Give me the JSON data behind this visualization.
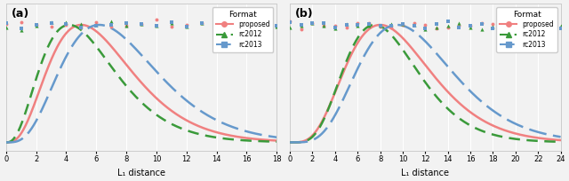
{
  "panel_a": {
    "label": "(a)",
    "xlabel": "L₁ distance",
    "xlim": [
      0,
      18
    ],
    "xticks": [
      0,
      2,
      4,
      6,
      8,
      10,
      12,
      14,
      16,
      18
    ],
    "proposed_peak": 5.0,
    "proposed_sigma": 2.8,
    "rc2012_peak": 4.2,
    "rc2012_sigma": 2.5,
    "rc2013_peak": 6.2,
    "rc2013_sigma": 3.2
  },
  "panel_b": {
    "label": "(b)",
    "xlabel": "L₁ distance",
    "xlim": [
      0,
      24
    ],
    "xticks": [
      0,
      2,
      4,
      6,
      8,
      10,
      12,
      14,
      16,
      18,
      20,
      22,
      24
    ],
    "proposed_peak": 8.0,
    "proposed_sigma": 3.8,
    "rc2012_peak": 7.5,
    "rc2012_sigma": 3.3,
    "rc2013_peak": 9.5,
    "rc2013_sigma": 4.2
  },
  "color_proposed": "#f08080",
  "color_rc2012": "#3a9a3a",
  "color_rc2013": "#6699cc",
  "legend_title": "Format",
  "legend_labels": [
    "proposed",
    "rc2012",
    "rc2013"
  ],
  "background_color": "#f2f2f2",
  "grid_color": "#ffffff"
}
